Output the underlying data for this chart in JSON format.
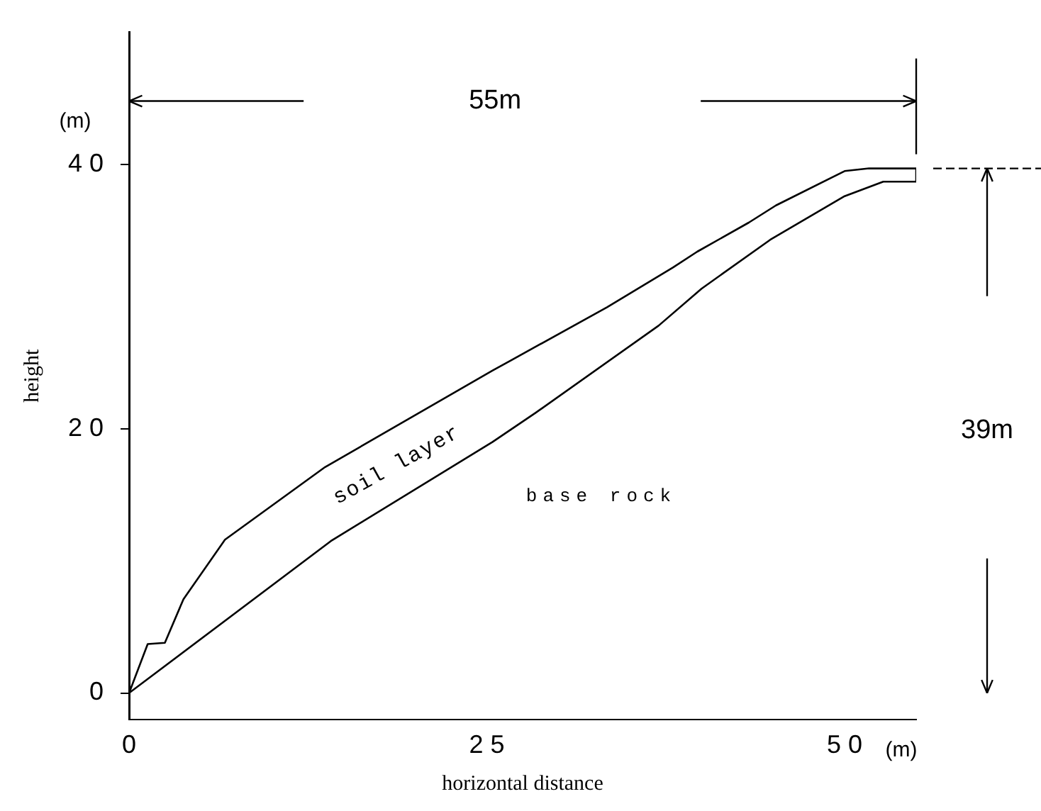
{
  "chart_data": {
    "type": "line",
    "xlabel": "horizontal distance",
    "ylabel": "height",
    "xlim": [
      0,
      55
    ],
    "ylim": [
      -2,
      50
    ],
    "xticks": [
      0,
      25,
      50
    ],
    "yticks": [
      0,
      20,
      40
    ],
    "grid": false,
    "legend": false,
    "marker": "none",
    "line_style": "solid",
    "series": [
      {
        "color": "#000000",
        "x": [
          0,
          1.3,
          2.5,
          3.8,
          6.7,
          13.7,
          25.4,
          28.4,
          33.4,
          38.0,
          39.7,
          43.3,
          45.2,
          50.0,
          51.7,
          55.0
        ],
        "values": [
          0,
          3.7,
          3.8,
          7.1,
          11.6,
          17.1,
          24.4,
          26.2,
          29.2,
          32.2,
          33.4,
          35.6,
          36.9,
          39.5,
          39.7,
          39.7
        ]
      },
      {
        "color": "#000000",
        "x": [
          0,
          14.1,
          25.4,
          28.4,
          37.0,
          40.0,
          44.8,
          50.0,
          52.7,
          55.0,
          55.0
        ],
        "values": [
          0,
          11.5,
          19.0,
          21.2,
          27.8,
          30.6,
          34.3,
          37.6,
          38.7,
          38.7,
          39.7
        ]
      }
    ],
    "annotations": [
      "soil layer",
      "base rock",
      "55m",
      "39m",
      "(m)",
      "(m)"
    ]
  }
}
